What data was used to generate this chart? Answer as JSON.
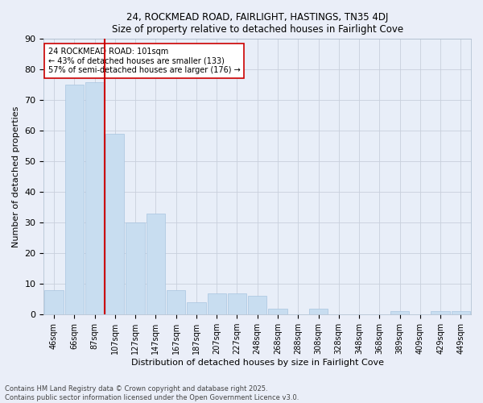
{
  "title1": "24, ROCKMEAD ROAD, FAIRLIGHT, HASTINGS, TN35 4DJ",
  "title2": "Size of property relative to detached houses in Fairlight Cove",
  "xlabel": "Distribution of detached houses by size in Fairlight Cove",
  "ylabel": "Number of detached properties",
  "bar_color": "#c8ddf0",
  "bar_edge_color": "#a8c4e0",
  "bar_labels": [
    "46sqm",
    "66sqm",
    "87sqm",
    "107sqm",
    "127sqm",
    "147sqm",
    "167sqm",
    "187sqm",
    "207sqm",
    "227sqm",
    "248sqm",
    "268sqm",
    "288sqm",
    "308sqm",
    "328sqm",
    "348sqm",
    "368sqm",
    "389sqm",
    "409sqm",
    "429sqm",
    "449sqm"
  ],
  "bar_values": [
    8,
    75,
    76,
    59,
    30,
    33,
    8,
    4,
    7,
    7,
    6,
    2,
    0,
    2,
    0,
    0,
    0,
    1,
    0,
    1,
    1
  ],
  "vline_color": "#cc0000",
  "annotation_line1": "24 ROCKMEAD ROAD: 101sqm",
  "annotation_line2": "← 43% of detached houses are smaller (133)",
  "annotation_line3": "57% of semi-detached houses are larger (176) →",
  "annotation_box_color": "#ffffff",
  "annotation_box_edge": "#cc0000",
  "ylim": [
    0,
    90
  ],
  "yticks": [
    0,
    10,
    20,
    30,
    40,
    50,
    60,
    70,
    80,
    90
  ],
  "grid_color": "#c8d0dc",
  "background_color": "#e8eef8",
  "fig_background": "#eaeef8",
  "footer": "Contains HM Land Registry data © Crown copyright and database right 2025.\nContains public sector information licensed under the Open Government Licence v3.0."
}
